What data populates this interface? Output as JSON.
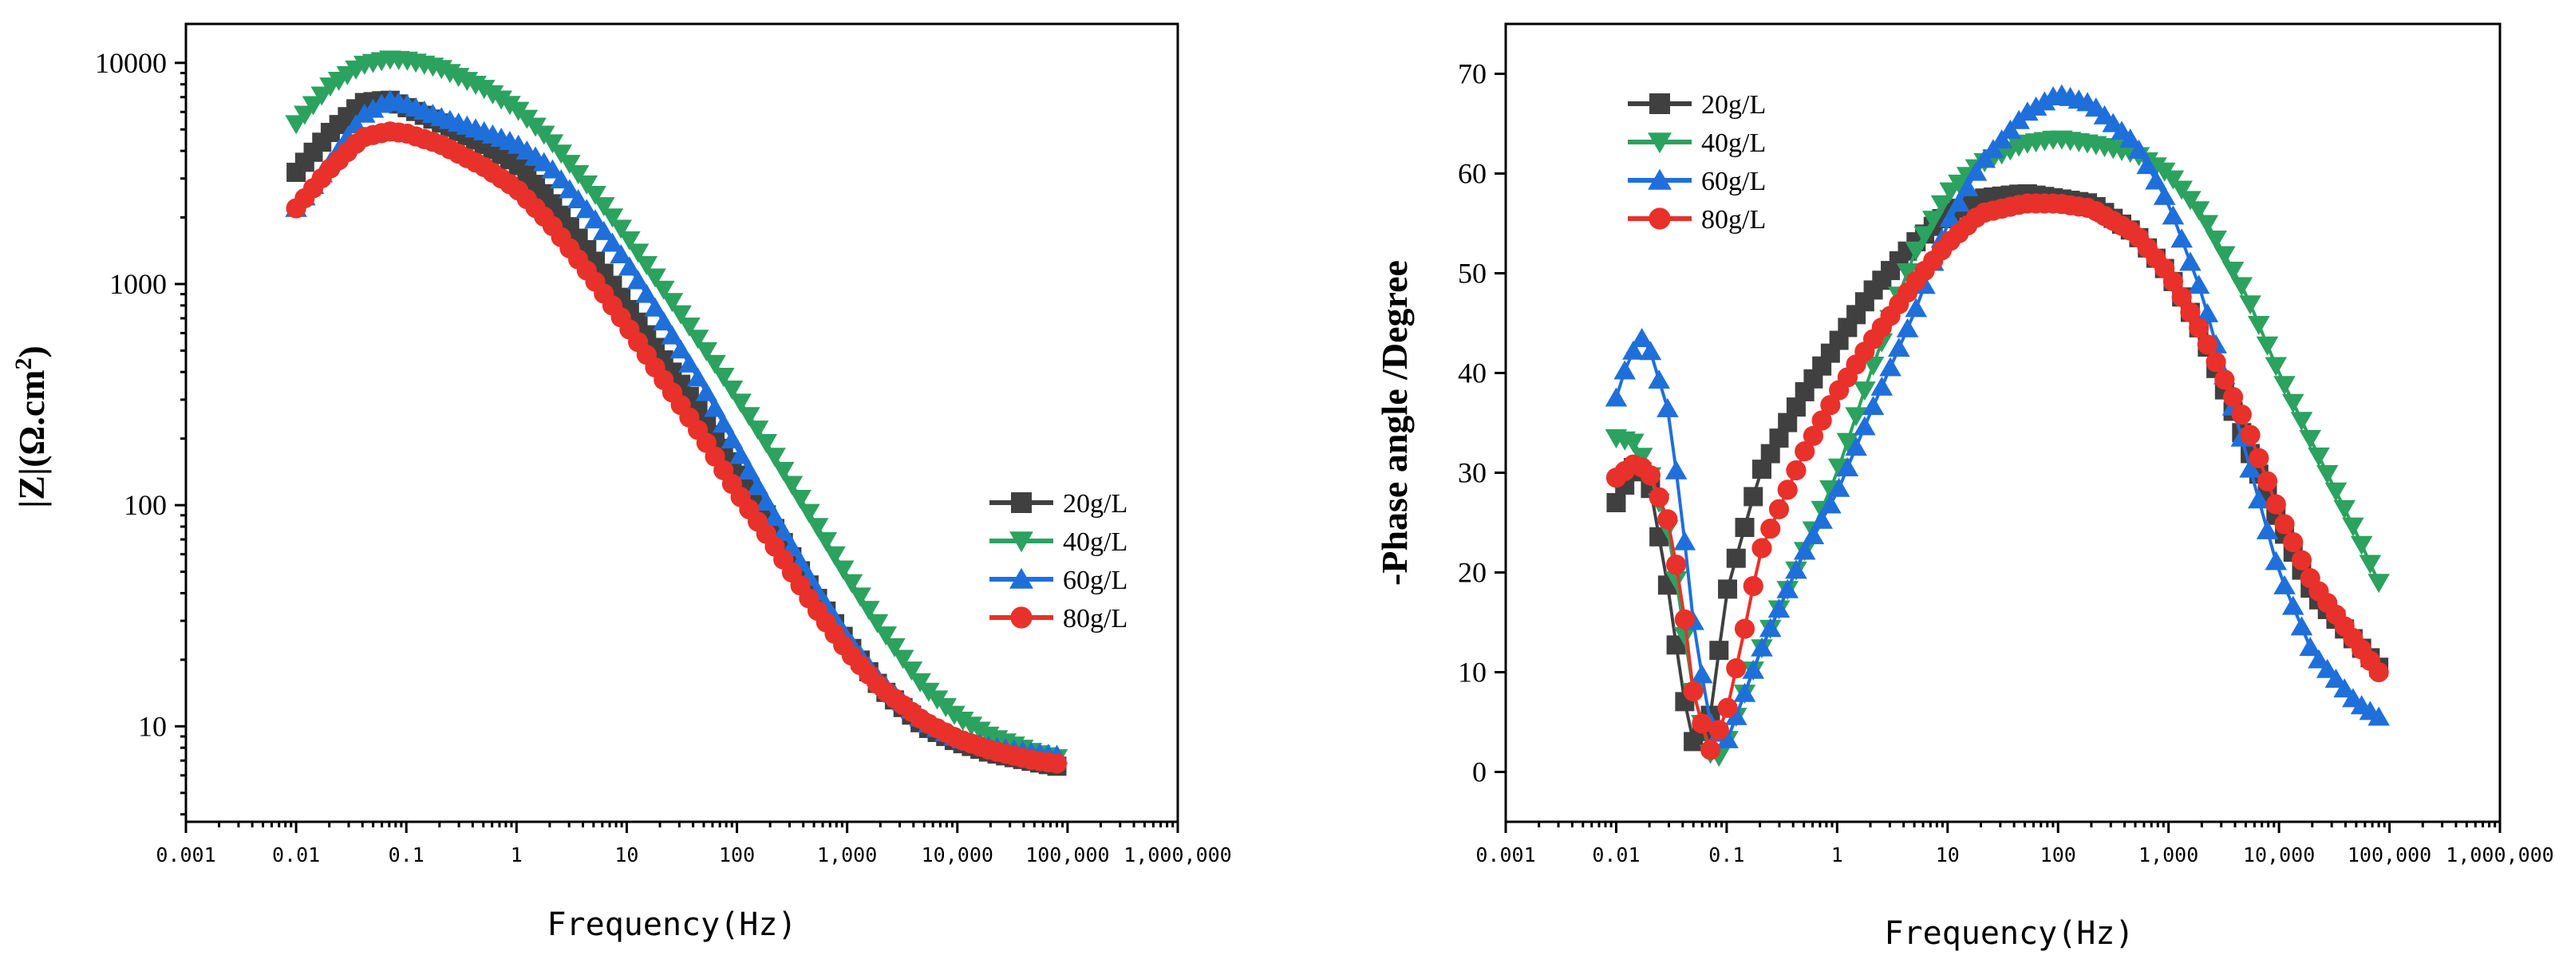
{
  "chart_data": [
    {
      "type": "line",
      "panel": "left",
      "xscale": "log",
      "yscale": "log",
      "xlim": [
        0.001,
        1000000
      ],
      "ylim": [
        3.7,
        15000
      ],
      "x_ticks": [
        0.001,
        0.01,
        0.1,
        1,
        10,
        100,
        1000,
        10000,
        100000,
        1000000
      ],
      "x_tick_labels": [
        "0.001",
        "0.01",
        "0.1",
        "1",
        "10",
        "100",
        "1,000",
        "10,000",
        "100,000",
        "1,000,000"
      ],
      "y_ticks": [
        10,
        100,
        1000,
        10000
      ],
      "y_tick_labels": [
        "10",
        "100",
        "1000",
        "10000"
      ],
      "xlabel": "Frequency(Hz)",
      "ylabel": "|Z|(Ω.cm²)",
      "ylabel_base": "|Z|(Ω.cm",
      "ylabel_sup": "2",
      "ylabel_end": ")",
      "legend_position": "right",
      "series": [
        {
          "name": "20g/L",
          "color": "#404040",
          "marker": "square",
          "x": [
            0.01,
            0.02,
            0.04,
            0.07,
            0.1,
            0.2,
            0.5,
            1,
            2,
            5,
            10,
            20,
            50,
            100,
            200,
            500,
            1000,
            2000,
            5000,
            10000,
            20000,
            50000,
            80000
          ],
          "y": [
            3200,
            4800,
            6600,
            6800,
            6300,
            5400,
            4300,
            3500,
            2400,
            1300,
            800,
            480,
            250,
            145,
            85,
            40,
            24,
            15,
            10,
            8.5,
            7.6,
            6.9,
            6.6
          ]
        },
        {
          "name": "40g/L",
          "color": "#2ca25f",
          "marker": "triangle-down",
          "x": [
            0.01,
            0.02,
            0.04,
            0.07,
            0.1,
            0.2,
            0.5,
            1,
            2,
            5,
            10,
            20,
            50,
            100,
            200,
            500,
            1000,
            2000,
            5000,
            10000,
            20000,
            50000,
            80000
          ],
          "y": [
            5300,
            7800,
            9800,
            10400,
            10300,
            9500,
            7700,
            6200,
            4500,
            2600,
            1650,
            1000,
            520,
            310,
            180,
            85,
            48,
            28,
            15,
            11,
            9,
            7.6,
            7.2
          ]
        },
        {
          "name": "60g/L",
          "color": "#1f6fdb",
          "marker": "triangle-up",
          "x": [
            0.01,
            0.02,
            0.04,
            0.07,
            0.1,
            0.2,
            0.5,
            1,
            2,
            5,
            10,
            20,
            50,
            100,
            200,
            500,
            1000,
            2000,
            5000,
            10000,
            20000,
            50000,
            80000
          ],
          "y": [
            2200,
            3500,
            5800,
            6800,
            6500,
            5700,
            4900,
            4300,
            3400,
            2000,
            1250,
            720,
            340,
            180,
            96,
            43,
            25,
            16,
            10.5,
            8.8,
            8.1,
            7.6,
            7.4
          ]
        },
        {
          "name": "80g/L",
          "color": "#e8312a",
          "marker": "circle",
          "x": [
            0.01,
            0.02,
            0.04,
            0.07,
            0.1,
            0.2,
            0.5,
            1,
            2,
            5,
            10,
            20,
            50,
            100,
            200,
            500,
            1000,
            2000,
            5000,
            10000,
            20000,
            50000,
            80000
          ],
          "y": [
            2200,
            3300,
            4600,
            4900,
            4800,
            4300,
            3400,
            2700,
            1900,
            1050,
            650,
            390,
            200,
            115,
            70,
            35,
            22,
            15,
            10.5,
            8.8,
            7.8,
            7,
            6.8
          ]
        }
      ]
    },
    {
      "type": "line",
      "panel": "right",
      "xscale": "log",
      "yscale": "linear",
      "xlim": [
        0.001,
        1000000
      ],
      "ylim": [
        -5,
        75
      ],
      "x_ticks": [
        0.001,
        0.01,
        0.1,
        1,
        10,
        100,
        1000,
        10000,
        100000,
        1000000
      ],
      "x_tick_labels": [
        "0.001",
        "0.01",
        "0.1",
        "1",
        "10",
        "100",
        "1,000",
        "10,000",
        "100,000",
        "1,000,000"
      ],
      "y_ticks": [
        0,
        10,
        20,
        30,
        40,
        50,
        60,
        70
      ],
      "y_tick_labels": [
        "0",
        "10",
        "20",
        "30",
        "40",
        "50",
        "60",
        "70"
      ],
      "xlabel": "Frequency(Hz)",
      "ylabel": "-Phase angle /Degree",
      "legend_position": "top-left",
      "series": [
        {
          "name": "20g/L",
          "color": "#404040",
          "marker": "square",
          "x": [
            0.01,
            0.015,
            0.02,
            0.03,
            0.04,
            0.05,
            0.07,
            0.1,
            0.2,
            0.5,
            1,
            2,
            5,
            10,
            20,
            50,
            100,
            200,
            500,
            1000,
            2000,
            5000,
            10000,
            20000,
            50000,
            80000
          ],
          "y": [
            27,
            31,
            29,
            18,
            8,
            3,
            5,
            18,
            30,
            38,
            43,
            48,
            53,
            56,
            57.5,
            58,
            57.5,
            57,
            54,
            50,
            44,
            33,
            25,
            18,
            13,
            10.5
          ]
        },
        {
          "name": "40g/L",
          "color": "#2ca25f",
          "marker": "triangle-down",
          "x": [
            0.01,
            0.015,
            0.02,
            0.03,
            0.04,
            0.05,
            0.07,
            0.08,
            0.1,
            0.2,
            0.5,
            1,
            2,
            5,
            10,
            20,
            50,
            100,
            200,
            500,
            1000,
            2000,
            5000,
            10000,
            20000,
            50000,
            80000
          ],
          "y": [
            33.5,
            33,
            30,
            24,
            15,
            8,
            2,
            1,
            3,
            12,
            22,
            30,
            40,
            52,
            58,
            61,
            63,
            63.5,
            63,
            62,
            60,
            56,
            48,
            40,
            33,
            24,
            19
          ]
        },
        {
          "name": "60g/L",
          "color": "#1f6fdb",
          "marker": "triangle-up",
          "x": [
            0.01,
            0.013,
            0.017,
            0.02,
            0.03,
            0.04,
            0.05,
            0.07,
            0.1,
            0.2,
            0.5,
            1,
            2,
            5,
            10,
            20,
            50,
            100,
            200,
            500,
            1000,
            2000,
            5000,
            10000,
            20000,
            50000,
            80000
          ],
          "y": [
            37.5,
            41.5,
            43.5,
            42.5,
            36,
            25,
            15,
            5,
            3,
            12,
            22,
            28,
            36,
            46,
            55,
            61,
            66,
            68,
            67,
            63,
            57,
            48,
            32,
            20,
            12,
            7,
            5.5
          ]
        },
        {
          "name": "80g/L",
          "color": "#e8312a",
          "marker": "circle",
          "x": [
            0.01,
            0.015,
            0.02,
            0.03,
            0.04,
            0.05,
            0.07,
            0.1,
            0.15,
            0.2,
            0.5,
            1,
            2,
            5,
            10,
            20,
            50,
            100,
            200,
            500,
            1000,
            2000,
            5000,
            10000,
            20000,
            50000,
            80000
          ],
          "y": [
            29.5,
            31,
            30,
            25,
            17,
            8,
            2,
            6,
            15,
            22,
            32,
            38,
            43,
            49,
            53,
            56,
            57,
            57,
            56.5,
            54,
            50,
            44,
            35,
            26,
            19,
            13,
            10
          ]
        }
      ]
    }
  ]
}
